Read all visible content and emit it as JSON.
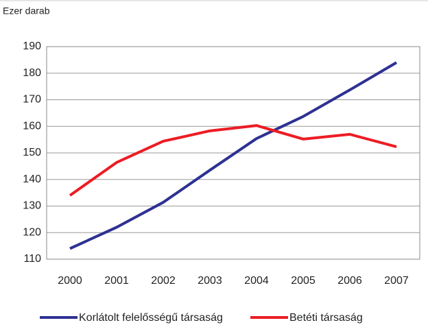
{
  "chart_data": {
    "type": "line",
    "y_axis_label": "Ezer darab",
    "categories": [
      "2000",
      "2001",
      "2002",
      "2003",
      "2004",
      "2005",
      "2006",
      "2007"
    ],
    "series": [
      {
        "name": "Korlátolt felelősségű társaság",
        "color": "#2e3192",
        "values": [
          114,
          122,
          131.4,
          143.5,
          155.4,
          163.7,
          173.7,
          184
        ]
      },
      {
        "name": "Betéti társaság",
        "color": "#ed1c24",
        "values": [
          134,
          146.4,
          154.4,
          158.3,
          160.3,
          155.2,
          157,
          152.3
        ]
      }
    ],
    "ylim": [
      110,
      190
    ],
    "yticks": [
      110,
      120,
      130,
      140,
      150,
      160,
      170,
      180,
      190
    ],
    "grid": true,
    "legend": "bottom"
  }
}
